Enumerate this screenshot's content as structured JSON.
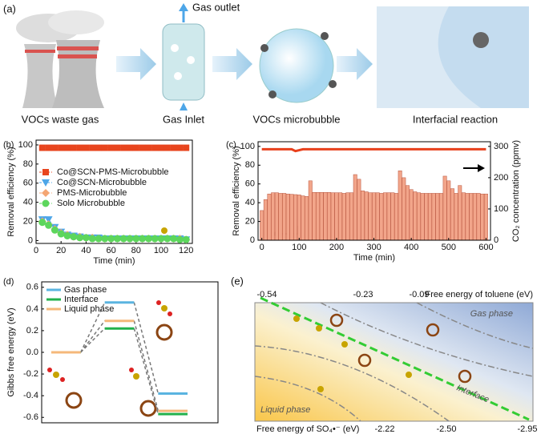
{
  "panels": {
    "a": {
      "label": "(a)",
      "captions": [
        "VOCs waste gas",
        "Gas Inlet",
        "VOCs microbubble",
        "Interfacial reaction"
      ],
      "gas_outlet": "Gas outlet"
    },
    "e": {
      "label": "(e)",
      "top_axis_label": "Free energy of toluene (eV)",
      "top_ticks": [
        "-0.54",
        "-0.23",
        "-0.09"
      ],
      "bottom_axis_label": "Free energy of SO₄•⁻ (eV)",
      "bottom_ticks": [
        "-2.22",
        "-2.50",
        "-2.95"
      ],
      "regions": {
        "gas": "Gas phase",
        "liquid": "Liquid phase",
        "interface": "Interface"
      }
    }
  },
  "chart_data": [
    {
      "type": "line",
      "label": "(b)",
      "xlabel": "Time (min)",
      "ylabel": "Removal efficiency (%)",
      "xlim": [
        0,
        125
      ],
      "ylim": [
        -3,
        105
      ],
      "xticks": [
        0,
        20,
        40,
        60,
        80,
        100,
        120
      ],
      "yticks": [
        0,
        20,
        40,
        60,
        80,
        100
      ],
      "legend": "upper-left",
      "x": [
        5,
        10,
        15,
        20,
        25,
        30,
        35,
        40,
        45,
        50,
        55,
        60,
        65,
        70,
        75,
        80,
        85,
        90,
        95,
        100,
        105,
        110,
        115,
        120
      ],
      "series": [
        {
          "name": "Co@SCN-PMS-Microbubble",
          "color": "#e8451e",
          "marker": "square",
          "values": [
            97,
            97,
            97,
            97,
            97,
            97,
            97,
            97,
            97,
            97,
            97,
            97,
            97,
            97,
            97,
            97,
            97,
            97,
            97,
            97,
            97,
            97,
            97,
            97
          ]
        },
        {
          "name": "Co@SCN-Microbubble",
          "color": "#4da6e8",
          "marker": "triangle",
          "values": [
            22,
            22,
            14,
            9,
            6,
            5,
            4,
            3,
            3,
            3,
            2,
            2,
            2,
            2,
            2,
            2,
            2,
            2,
            2,
            2,
            2,
            2,
            2,
            1
          ]
        },
        {
          "name": "PMS-Microbubble",
          "color": "#f4a673",
          "marker": "diamond",
          "values": [
            20,
            17,
            12,
            8,
            6,
            4,
            4,
            3,
            3,
            2,
            2,
            2,
            2,
            2,
            2,
            2,
            2,
            2,
            2,
            2,
            2,
            2,
            2,
            1
          ]
        },
        {
          "name": "Solo Microbubble",
          "color": "#5cd65c",
          "marker": "circle",
          "values": [
            19,
            16,
            11,
            7,
            5,
            4,
            3,
            3,
            2,
            2,
            2,
            2,
            2,
            2,
            2,
            2,
            2,
            2,
            2,
            2,
            2,
            2,
            1,
            1
          ]
        }
      ]
    },
    {
      "type": "combo",
      "label": "(c)",
      "xlabel": "Time (min)",
      "ylabel": "Removal efficiency (%)",
      "y2label": "CO₂ concentration (ppmv)",
      "xlim": [
        -10,
        612
      ],
      "ylim": [
        0,
        105
      ],
      "y2lim": [
        0,
        315
      ],
      "xticks": [
        0,
        100,
        200,
        300,
        400,
        500,
        600
      ],
      "yticks": [
        0,
        20,
        40,
        60,
        80,
        100
      ],
      "y2ticks": [
        0,
        100,
        200,
        300
      ],
      "x": [
        0,
        10,
        20,
        30,
        40,
        50,
        60,
        70,
        80,
        90,
        100,
        110,
        120,
        130,
        140,
        150,
        160,
        170,
        180,
        190,
        200,
        210,
        220,
        230,
        240,
        250,
        260,
        270,
        280,
        290,
        300,
        310,
        320,
        330,
        340,
        350,
        360,
        370,
        380,
        390,
        400,
        410,
        420,
        430,
        440,
        450,
        460,
        470,
        480,
        490,
        500,
        510,
        520,
        530,
        540,
        550,
        560,
        570,
        580,
        590,
        600
      ],
      "series": [
        {
          "kind": "bar",
          "axis": "y2",
          "color": "#f2a58a",
          "values": [
            95,
            130,
            148,
            152,
            152,
            150,
            150,
            148,
            147,
            146,
            145,
            142,
            140,
            190,
            153,
            153,
            153,
            153,
            153,
            152,
            152,
            152,
            150,
            152,
            152,
            210,
            195,
            158,
            155,
            152,
            152,
            152,
            150,
            152,
            152,
            152,
            150,
            222,
            200,
            175,
            162,
            155,
            152,
            150,
            150,
            150,
            150,
            150,
            150,
            205,
            190,
            165,
            150,
            175,
            152,
            150,
            150,
            150,
            150,
            148,
            148
          ]
        },
        {
          "kind": "line",
          "axis": "y",
          "color": "#e8401c",
          "values": [
            97,
            97,
            97,
            97,
            97,
            97,
            97,
            97,
            97,
            95,
            96,
            97,
            97,
            97,
            97,
            97,
            97,
            97,
            97,
            97,
            97,
            97,
            97,
            97,
            97,
            97,
            97,
            97,
            97,
            97,
            97,
            97,
            97,
            97,
            97,
            97,
            97,
            97,
            97,
            97,
            97,
            97,
            97,
            97,
            97,
            97,
            97,
            97,
            97,
            97,
            97,
            97,
            97,
            97,
            97,
            97,
            97,
            97,
            97,
            97,
            97
          ]
        }
      ]
    },
    {
      "type": "energy-level",
      "label": "(d)",
      "ylabel": "Gibbs free energy (eV)",
      "ylim": [
        -0.65,
        0.65
      ],
      "yticks": [
        -0.6,
        -0.4,
        -0.2,
        {
          "value": 0,
          "label": "0.0"
        },
        0.2,
        0.4,
        0.6
      ],
      "legend": "upper-left",
      "categories": [
        null,
        null,
        null
      ],
      "series": [
        {
          "name": "Gas phase",
          "color": "#5ab4e0",
          "values": [
            0,
            0.46,
            -0.38
          ]
        },
        {
          "name": "Interface",
          "color": "#22b14c",
          "values": [
            0,
            0.22,
            -0.57
          ]
        },
        {
          "name": "Liquid phase",
          "color": "#f5b87a",
          "values": [
            0,
            0.29,
            -0.54
          ]
        }
      ]
    }
  ]
}
